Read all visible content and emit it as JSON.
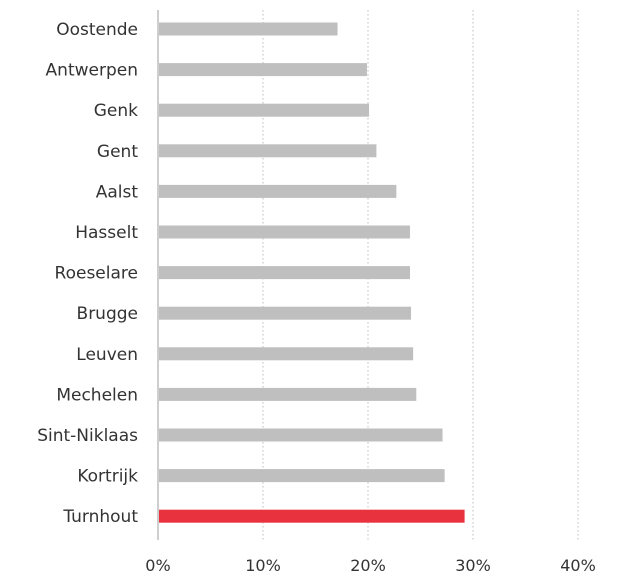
{
  "chart_data": {
    "type": "bar",
    "orientation": "horizontal",
    "title": "",
    "xlabel": "",
    "ylabel": "",
    "categories": [
      "Oostende",
      "Antwerpen",
      "Genk",
      "Gent",
      "Aalst",
      "Hasselt",
      "Roeselare",
      "Brugge",
      "Leuven",
      "Mechelen",
      "Sint-Niklaas",
      "Kortrijk",
      "Turnhout"
    ],
    "values": [
      17.1,
      19.9,
      20.1,
      20.8,
      22.7,
      24.0,
      24.0,
      24.1,
      24.3,
      24.6,
      27.1,
      27.3,
      29.2
    ],
    "highlight": "Turnhout",
    "xlim": [
      0,
      40
    ],
    "x_ticks": [
      0,
      10,
      20,
      30,
      40
    ],
    "x_tick_labels": [
      "0%",
      "10%",
      "20%",
      "30%",
      "40%"
    ],
    "grid": "vertical dotted",
    "legend": "none",
    "colors": {
      "bar": "#bfbfbf",
      "highlight": "#e8333e",
      "grid": "#bdbdbd",
      "text": "#333333"
    }
  }
}
